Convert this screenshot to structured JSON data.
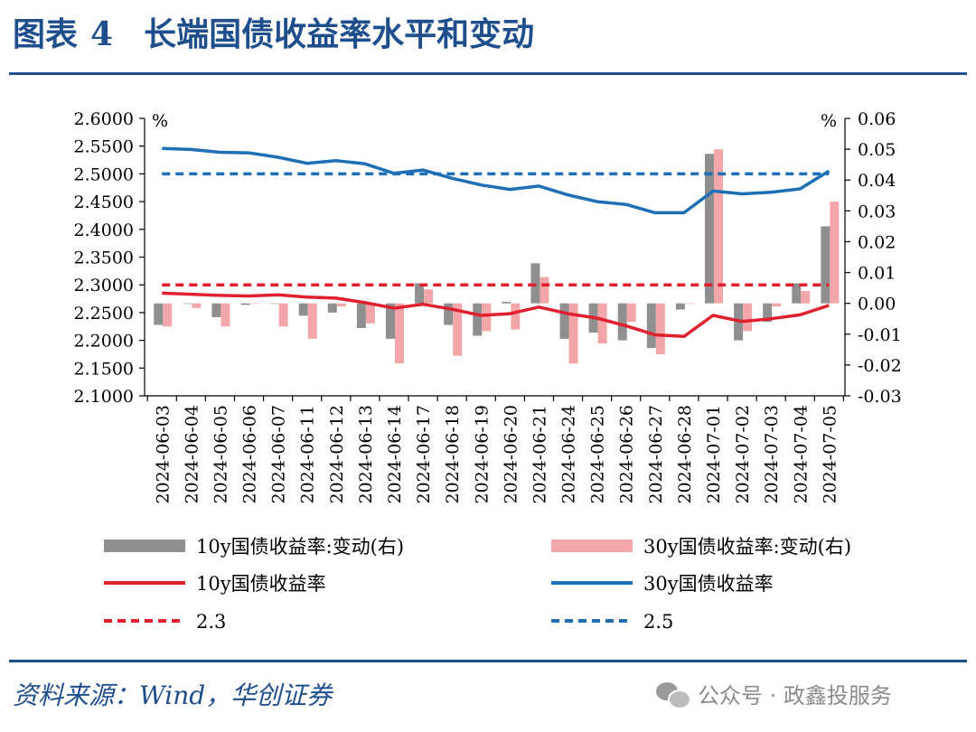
{
  "figure": {
    "label": "图表",
    "number": "4",
    "title": "长端国债收益率水平和变动"
  },
  "source": "资料来源：Wind，华创证券",
  "watermark": "公众号 · 政鑫投服务",
  "colors": {
    "title": "#1f4e8c",
    "change10y": "#8f8f8f",
    "change30y": "#f2a6aa",
    "yield10y": "#e0202e",
    "yield30y": "#1e6fb5",
    "ref23": "#e0202e",
    "ref25": "#1e6fb5"
  },
  "chart_data": {
    "type": "line",
    "categories": [
      "2024-06-03",
      "2024-06-04",
      "2024-06-05",
      "2024-06-06",
      "2024-06-07",
      "2024-06-11",
      "2024-06-12",
      "2024-06-13",
      "2024-06-14",
      "2024-06-17",
      "2024-06-18",
      "2024-06-19",
      "2024-06-20",
      "2024-06-21",
      "2024-06-24",
      "2024-06-25",
      "2024-06-26",
      "2024-06-27",
      "2024-06-28",
      "2024-07-01",
      "2024-07-02",
      "2024-07-03",
      "2024-07-04",
      "2024-07-05"
    ],
    "left_axis": {
      "unit": "%",
      "ylim": [
        2.1,
        2.6
      ],
      "ticks": [
        "2.6000",
        "2.5500",
        "2.5000",
        "2.4500",
        "2.4000",
        "2.3500",
        "2.3000",
        "2.2500",
        "2.2000",
        "2.1500",
        "2.1000"
      ]
    },
    "right_axis": {
      "unit": "%",
      "ylim": [
        -0.03,
        0.06
      ],
      "ticks": [
        "0.06",
        "0.05",
        "0.04",
        "0.03",
        "0.02",
        "0.01",
        "0.00",
        "-0.01",
        "-0.02",
        "-0.03"
      ]
    },
    "series": [
      {
        "name": "10y国债收益率:变动(右)",
        "type": "bar",
        "axis": "right",
        "values": [
          -0.007,
          0.0,
          -0.0045,
          -0.0005,
          0.0,
          -0.004,
          -0.003,
          -0.008,
          -0.0115,
          0.0065,
          -0.007,
          -0.0105,
          0.0005,
          0.013,
          -0.0115,
          -0.0095,
          -0.012,
          -0.0145,
          -0.002,
          0.0485,
          -0.012,
          -0.006,
          0.0065,
          0.025
        ]
      },
      {
        "name": "30y国债收益率:变动(右)",
        "type": "bar",
        "axis": "right",
        "values": [
          -0.0075,
          -0.0015,
          -0.0075,
          0.0,
          -0.0075,
          -0.0115,
          -0.001,
          -0.0065,
          -0.0195,
          0.0045,
          -0.017,
          -0.009,
          -0.0085,
          0.0085,
          -0.0195,
          -0.013,
          -0.006,
          -0.0165,
          0.0,
          0.05,
          -0.009,
          -0.001,
          0.004,
          0.033
        ]
      },
      {
        "name": "10y国债收益率",
        "type": "line",
        "axis": "left",
        "values": [
          2.285,
          2.283,
          2.281,
          2.28,
          2.282,
          2.278,
          2.276,
          2.268,
          2.258,
          2.265,
          2.256,
          2.245,
          2.248,
          2.26,
          2.248,
          2.24,
          2.226,
          2.21,
          2.207,
          2.245,
          2.234,
          2.239,
          2.246,
          2.263
        ]
      },
      {
        "name": "30y国债收益率",
        "type": "line",
        "axis": "left",
        "values": [
          2.546,
          2.544,
          2.539,
          2.538,
          2.53,
          2.519,
          2.524,
          2.518,
          2.501,
          2.507,
          2.492,
          2.48,
          2.472,
          2.478,
          2.462,
          2.45,
          2.445,
          2.43,
          2.43,
          2.469,
          2.464,
          2.467,
          2.473,
          2.505
        ]
      },
      {
        "name": "2.3",
        "type": "ref",
        "axis": "left",
        "value": 2.3
      },
      {
        "name": "2.5",
        "type": "ref",
        "axis": "left",
        "value": 2.5
      }
    ],
    "legend": "bottom"
  }
}
